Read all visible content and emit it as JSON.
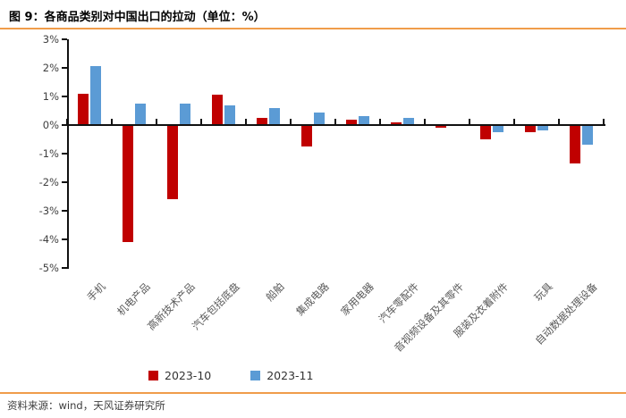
{
  "header": {
    "title": "图 9：各商品类别对中国出口的拉动（单位：%）"
  },
  "chart_data": {
    "type": "bar",
    "title": "各商品类别对中国出口的拉动",
    "unit": "%",
    "categories": [
      "手机",
      "机电产品",
      "高新技术产品",
      "汽车包括底盘",
      "船舶",
      "集成电路",
      "家用电器",
      "汽车零配件",
      "音视频设备及其零件",
      "服装及衣着附件",
      "玩具",
      "自动数据处理设备"
    ],
    "series": [
      {
        "name": "2023-10",
        "color": "#C00000",
        "values": [
          1.1,
          -4.1,
          -2.6,
          1.05,
          0.25,
          -0.75,
          0.2,
          0.1,
          -0.1,
          -0.5,
          -0.25,
          -1.35
        ]
      },
      {
        "name": "2023-11",
        "color": "#5B9BD5",
        "values": [
          2.05,
          0.75,
          0.75,
          0.7,
          0.6,
          0.45,
          0.3,
          0.25,
          0,
          -0.25,
          -0.2,
          -0.7
        ]
      }
    ],
    "ylim": [
      -5,
      3
    ],
    "ytick_step": 1,
    "ytick_suffix": "%",
    "grid": false,
    "legend_position": "bottom"
  },
  "footer": {
    "source": "资料来源：wind，天风证券研究所"
  },
  "colors": {
    "accent_orange": "#F09C4A",
    "bar_red": "#C00000",
    "bar_blue": "#5B9BD5",
    "axis": "#111111"
  }
}
